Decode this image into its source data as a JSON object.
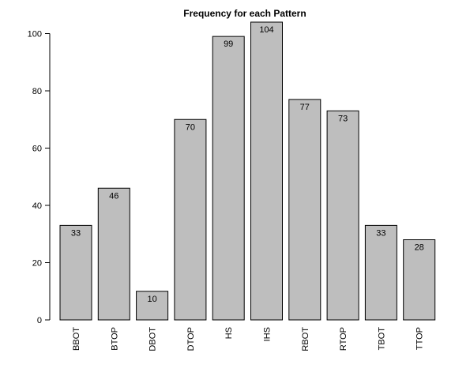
{
  "chart_data": {
    "type": "bar",
    "title": "Frequency for each Pattern",
    "xlabel": "",
    "ylabel": "",
    "categories": [
      "BBOT",
      "BTOP",
      "DBOT",
      "DTOP",
      "HS",
      "IHS",
      "RBOT",
      "RTOP",
      "TBOT",
      "TTOP"
    ],
    "values": [
      33,
      46,
      10,
      70,
      99,
      104,
      77,
      73,
      33,
      28
    ],
    "ylim": [
      0,
      104
    ],
    "yticks": [
      0,
      20,
      40,
      60,
      80,
      100
    ],
    "grid": false,
    "legend": "none",
    "colors": {
      "bar_fill": "#bebebe",
      "bar_stroke": "#000000",
      "axis": "#000000"
    }
  }
}
